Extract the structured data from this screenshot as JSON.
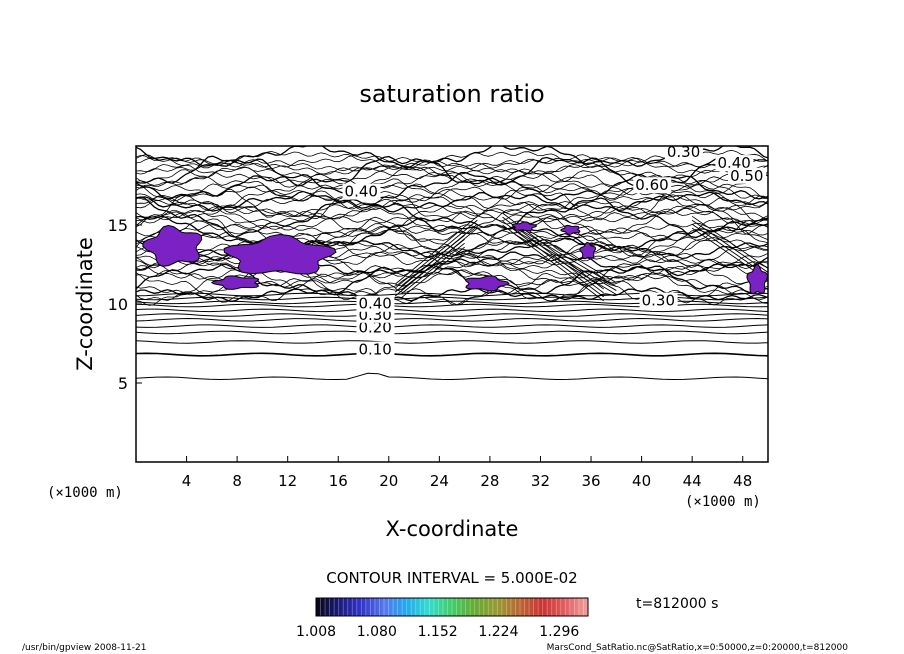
{
  "chart_data": {
    "type": "contour",
    "title": "saturation ratio",
    "xlabel": "X-coordinate",
    "ylabel": "Z-coordinate",
    "x_unit_left": "(×1000 m)",
    "x_unit_right": "(×1000 m)",
    "xlim": [
      0,
      50
    ],
    "ylim": [
      0,
      20
    ],
    "x_ticks": [
      4,
      8,
      12,
      16,
      20,
      24,
      28,
      32,
      36,
      40,
      44,
      48
    ],
    "y_ticks": [
      5,
      10,
      15
    ],
    "contour_interval_text": "CONTOUR INTERVAL = 5.000E-02",
    "time_text": "t=812000 s",
    "contour_labels": [
      {
        "text": "0.10",
        "x": 17.6,
        "z": 6.8
      },
      {
        "text": "0.20",
        "x": 17.6,
        "z": 8.2
      },
      {
        "text": "0.30",
        "x": 17.6,
        "z": 9.0
      },
      {
        "text": "0.40",
        "x": 17.6,
        "z": 9.7
      },
      {
        "text": "0.30",
        "x": 42.0,
        "z": 19.3
      },
      {
        "text": "0.40",
        "x": 46.0,
        "z": 18.6
      },
      {
        "text": "0.50",
        "x": 47.0,
        "z": 17.8
      },
      {
        "text": "0.60",
        "x": 39.5,
        "z": 17.2
      },
      {
        "text": "0.40",
        "x": 16.5,
        "z": 16.8
      },
      {
        "text": "0.30",
        "x": 40.0,
        "z": 9.9
      }
    ],
    "shaded_regions": [
      {
        "x": [
          0.5,
          5.5
        ],
        "z": [
          12.3,
          15.0
        ]
      },
      {
        "x": [
          6.7,
          16.0
        ],
        "z": [
          11.7,
          14.4
        ]
      },
      {
        "x": [
          6.0,
          10.0
        ],
        "z": [
          10.9,
          11.8
        ]
      },
      {
        "x": [
          25.8,
          29.5
        ],
        "z": [
          10.8,
          11.8
        ]
      },
      {
        "x": [
          29.7,
          31.7
        ],
        "z": [
          14.6,
          15.2
        ]
      },
      {
        "x": [
          33.6,
          35.2
        ],
        "z": [
          14.4,
          15.0
        ]
      },
      {
        "x": [
          35.1,
          36.4
        ],
        "z": [
          12.8,
          13.9
        ]
      },
      {
        "x": [
          48.3,
          50.0
        ],
        "z": [
          10.5,
          12.5
        ]
      }
    ],
    "colorbar": {
      "ticks": [
        "1.008",
        "1.080",
        "1.152",
        "1.224",
        "1.296"
      ],
      "min": 1.008,
      "max": 1.33,
      "colors": [
        "#060614",
        "#1a1a7a",
        "#3333cc",
        "#5577ee",
        "#22aaee",
        "#33ddcc",
        "#44cc66",
        "#66aa33",
        "#999933",
        "#bb6633",
        "#cc3333",
        "#e06060",
        "#f0a0a0"
      ]
    },
    "shade_color": "#7a22c4"
  },
  "footer": {
    "left": "/usr/bin/gpview   2008-11-21",
    "right": "MarsCond_SatRatio.nc@SatRatio,x=0:50000,z=0:20000,t=812000"
  }
}
